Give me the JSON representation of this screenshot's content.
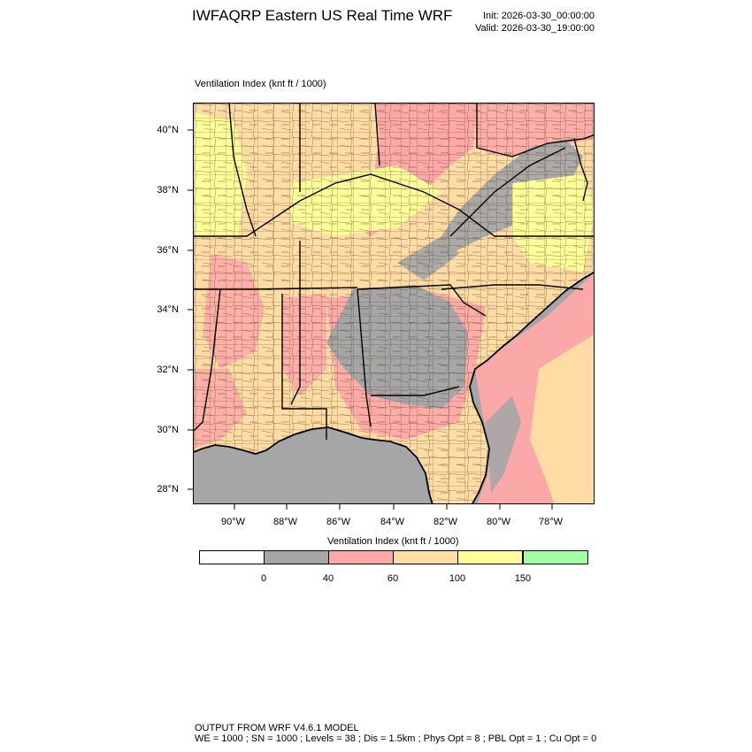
{
  "header": {
    "title": "IWFAQRP Eastern US Real Time WRF",
    "init": "Init: 2026-03-30_00:00:00",
    "valid": "Valid: 2026-03-30_19:00:00"
  },
  "plot": {
    "field_label": "Ventilation Index   (knt ft / 1000)",
    "lat_labels": [
      "40°N",
      "38°N",
      "36°N",
      "34°N",
      "32°N",
      "30°N",
      "28°N"
    ],
    "lon_labels": [
      "90°W",
      "88°W",
      "86°W",
      "84°W",
      "82°W",
      "80°W",
      "78°W"
    ]
  },
  "colorbar": {
    "title": "Ventilation Index  (knt ft / 1000)",
    "colors": [
      "#ffffff",
      "#a6a6a6",
      "#ffa8a8",
      "#ffdca3",
      "#ffff9a",
      "#a0ffa0"
    ],
    "ticks": [
      "0",
      "40",
      "60",
      "100",
      "150"
    ]
  },
  "footer": {
    "line1": "OUTPUT FROM WRF V4.6.1 MODEL",
    "line2": "WE = 1000 ; SN = 1000 ; Levels = 38 ; Dis = 1.5km ; Phys Opt = 8 ; PBL Opt = 1 ; Cu Opt = 0"
  }
}
